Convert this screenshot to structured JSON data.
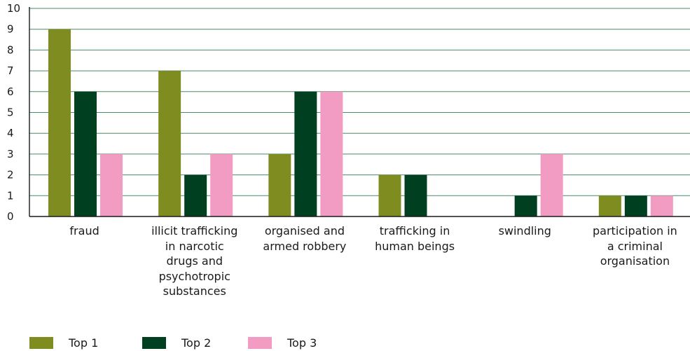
{
  "chart_data": {
    "type": "bar",
    "categories": [
      "fraud",
      "illicit trafficking in narcotic drugs and psychotropic substances",
      "organised and armed robbery",
      "trafficking in human beings",
      "swindling",
      "participation in a criminal organisation"
    ],
    "category_lines": [
      [
        "fraud"
      ],
      [
        "illicit trafficking",
        "in narcotic",
        "drugs and",
        "psychotropic",
        "substances"
      ],
      [
        "organised and",
        "armed robbery"
      ],
      [
        "trafficking in",
        "human beings"
      ],
      [
        "swindling"
      ],
      [
        "participation in",
        "a criminal",
        "organisation"
      ]
    ],
    "series": [
      {
        "name": "Top 1",
        "color": "#7f8c1f",
        "values": [
          9,
          7,
          3,
          2,
          0,
          1
        ]
      },
      {
        "name": "Top 2",
        "color": "#004020",
        "values": [
          6,
          2,
          6,
          2,
          1,
          1
        ]
      },
      {
        "name": "Top 3",
        "color": "#f39cc3",
        "values": [
          3,
          3,
          6,
          0,
          3,
          1
        ]
      }
    ],
    "ylim": [
      0,
      10
    ],
    "yticks": [
      0,
      1,
      2,
      3,
      4,
      5,
      6,
      7,
      8,
      9,
      10
    ],
    "grid": true,
    "grid_color": "#4a8a66",
    "legend_position": "bottom-left",
    "title": "",
    "xlabel": "",
    "ylabel": ""
  }
}
